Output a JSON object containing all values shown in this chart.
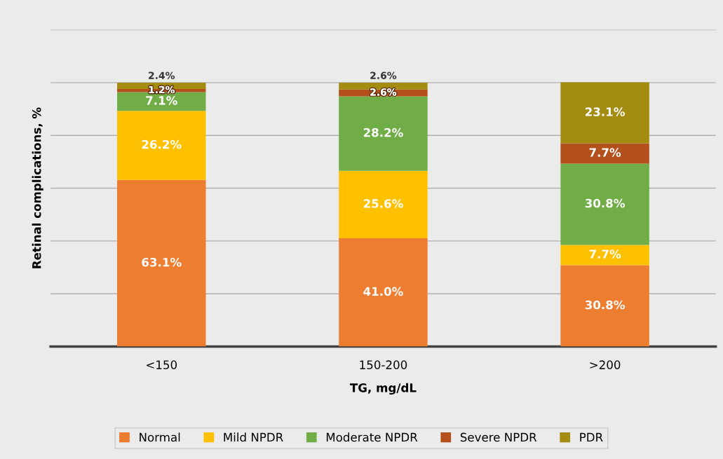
{
  "chart_data": {
    "type": "bar",
    "stacked": true,
    "xlabel": "TG, mg/dL",
    "ylabel": "Retinal complications, %",
    "categories": [
      "<150",
      "150-200",
      ">200"
    ],
    "series": [
      {
        "name": "Normal",
        "color": "#ed7d31",
        "values": [
          63.1,
          41.0,
          30.8
        ],
        "value_labels": [
          "63.1%",
          "41.0%",
          "30.8%"
        ]
      },
      {
        "name": "Mild NPDR",
        "color": "#ffc000",
        "values": [
          26.2,
          25.6,
          7.7
        ],
        "value_labels": [
          "26.2%",
          "25.6%",
          "7.7%"
        ]
      },
      {
        "name": "Moderate NPDR",
        "color": "#70ad47",
        "values": [
          7.1,
          28.2,
          30.8
        ],
        "value_labels": [
          "7.1%",
          "28.2%",
          "30.8%"
        ]
      },
      {
        "name": "Severe NPDR",
        "color": "#b4501c",
        "values": [
          1.2,
          2.6,
          7.7
        ],
        "value_labels": [
          "1.2%",
          "2.6%",
          "7.7%"
        ]
      },
      {
        "name": "PDR",
        "color": "#a38c10",
        "values": [
          2.4,
          2.6,
          23.1
        ],
        "value_labels": [
          "2.4%",
          "2.6%",
          "23.1%"
        ]
      }
    ],
    "ylim": [
      0,
      120
    ],
    "yticks": [
      {
        "value": 0,
        "label": null
      },
      {
        "value": 20,
        "label": null
      },
      {
        "value": 40,
        "label": null
      },
      {
        "value": 60,
        "label": null
      },
      {
        "value": 80,
        "label": null
      },
      {
        "value": 100,
        "label": null
      },
      {
        "value": 120,
        "label": null
      }
    ],
    "grid": "y",
    "legend": "bottom"
  }
}
